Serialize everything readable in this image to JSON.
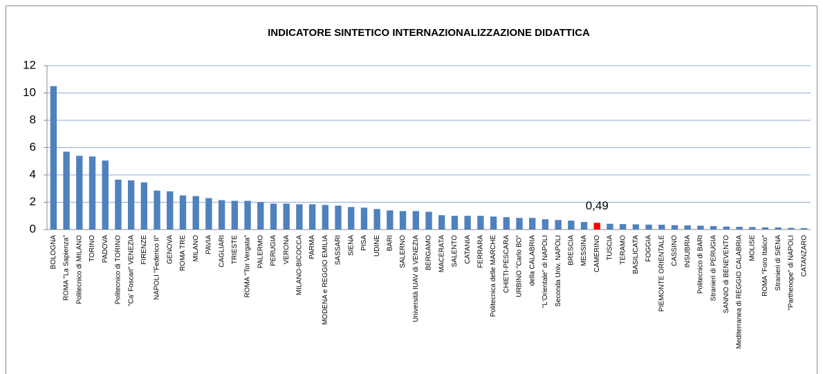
{
  "chart_data": {
    "type": "bar",
    "title": "INDICATORE SINTETICO INTERNAZIONALIZZAZIONE DIDATTICA",
    "categories": [
      "BOLOGNA",
      "ROMA \"La Sapienza\"",
      "Politecnico di MILANO",
      "TORINO",
      "PADOVA",
      "Politecnico di TORINO",
      "\"Ca' Foscari\" VENEZIA",
      "FIRENZE",
      "NAPOLI \"Federico II\"",
      "GENOVA",
      "ROMA TRE",
      "MILANO",
      "PAVIA",
      "CAGLIARI",
      "TRIESTE",
      "ROMA \"Tor Vergata\"",
      "PALERMO",
      "PERUGIA",
      "VERONA",
      "MILANO-BICOCCA",
      "PARMA",
      "MODENA e REGGIO EMILIA",
      "SASSARI",
      "SIENA",
      "PISA",
      "UDINE",
      "BARI",
      "SALERNO",
      "Università IUAV di VENEZIA",
      "BERGAMO",
      "MACERATA",
      "SALENTO",
      "CATANIA",
      "FERRARA",
      "Politecnica delle MARCHE",
      "CHIETI-PESCARA",
      "URBINO \"Carlo BO\"",
      "della CALABRIA",
      "\"L'Orientale\" di NAPOLI",
      "Seconda Univ. NAPOLI",
      "BRESCIA",
      "MESSINA",
      "CAMERINO",
      "TUSCIA",
      "TERAMO",
      "BASILICATA",
      "FOGGIA",
      "PIEMONTE ORIENTALE",
      "CASSINO",
      "INSUBRIA",
      "Politecnico di BARI",
      "Stranieri di PERUGIA",
      "SANNIO di BENEVENTO",
      "Mediterranea di REGGIO CALABRIA",
      "MOLISE",
      "ROMA \"Foro Italico\"",
      "Stranieri di SIENA",
      "\"Parthenope\" di NAPOLI",
      "CATANZARO"
    ],
    "values": [
      10.5,
      5.7,
      5.4,
      5.35,
      5.05,
      3.65,
      3.6,
      3.45,
      2.85,
      2.8,
      2.5,
      2.45,
      2.3,
      2.15,
      2.1,
      2.1,
      2.0,
      1.9,
      1.9,
      1.85,
      1.85,
      1.8,
      1.75,
      1.65,
      1.6,
      1.5,
      1.4,
      1.35,
      1.35,
      1.3,
      1.05,
      1.0,
      1.0,
      1.0,
      0.95,
      0.9,
      0.85,
      0.85,
      0.75,
      0.7,
      0.65,
      0.55,
      0.49,
      0.42,
      0.4,
      0.38,
      0.36,
      0.35,
      0.32,
      0.3,
      0.28,
      0.25,
      0.22,
      0.2,
      0.18,
      0.16,
      0.15,
      0.12,
      0.1
    ],
    "value_labels": [
      null,
      null,
      null,
      null,
      null,
      null,
      null,
      null,
      null,
      null,
      null,
      null,
      null,
      null,
      null,
      null,
      null,
      null,
      null,
      null,
      null,
      null,
      null,
      null,
      null,
      null,
      null,
      null,
      null,
      null,
      null,
      null,
      null,
      null,
      null,
      null,
      null,
      null,
      null,
      null,
      null,
      null,
      "0,49",
      null,
      null,
      null,
      null,
      null,
      null,
      null,
      null,
      null,
      null,
      null,
      null,
      null,
      null,
      null,
      null
    ],
    "colors": [
      "#4f81bd",
      "#4f81bd",
      "#4f81bd",
      "#4f81bd",
      "#4f81bd",
      "#4f81bd",
      "#4f81bd",
      "#4f81bd",
      "#4f81bd",
      "#4f81bd",
      "#4f81bd",
      "#4f81bd",
      "#4f81bd",
      "#4f81bd",
      "#4f81bd",
      "#4f81bd",
      "#4f81bd",
      "#4f81bd",
      "#4f81bd",
      "#4f81bd",
      "#4f81bd",
      "#4f81bd",
      "#4f81bd",
      "#4f81bd",
      "#4f81bd",
      "#4f81bd",
      "#4f81bd",
      "#4f81bd",
      "#4f81bd",
      "#4f81bd",
      "#4f81bd",
      "#4f81bd",
      "#4f81bd",
      "#4f81bd",
      "#4f81bd",
      "#4f81bd",
      "#4f81bd",
      "#4f81bd",
      "#4f81bd",
      "#4f81bd",
      "#4f81bd",
      "#4f81bd",
      "#ff0000",
      "#4f81bd",
      "#4f81bd",
      "#4f81bd",
      "#4f81bd",
      "#4f81bd",
      "#4f81bd",
      "#4f81bd",
      "#4f81bd",
      "#4f81bd",
      "#4f81bd",
      "#4f81bd",
      "#4f81bd",
      "#4f81bd",
      "#4f81bd",
      "#4f81bd",
      "#4f81bd"
    ],
    "ylim": [
      0,
      12
    ],
    "yticks": [
      0,
      2,
      4,
      6,
      8,
      10,
      12
    ],
    "grid": true
  }
}
